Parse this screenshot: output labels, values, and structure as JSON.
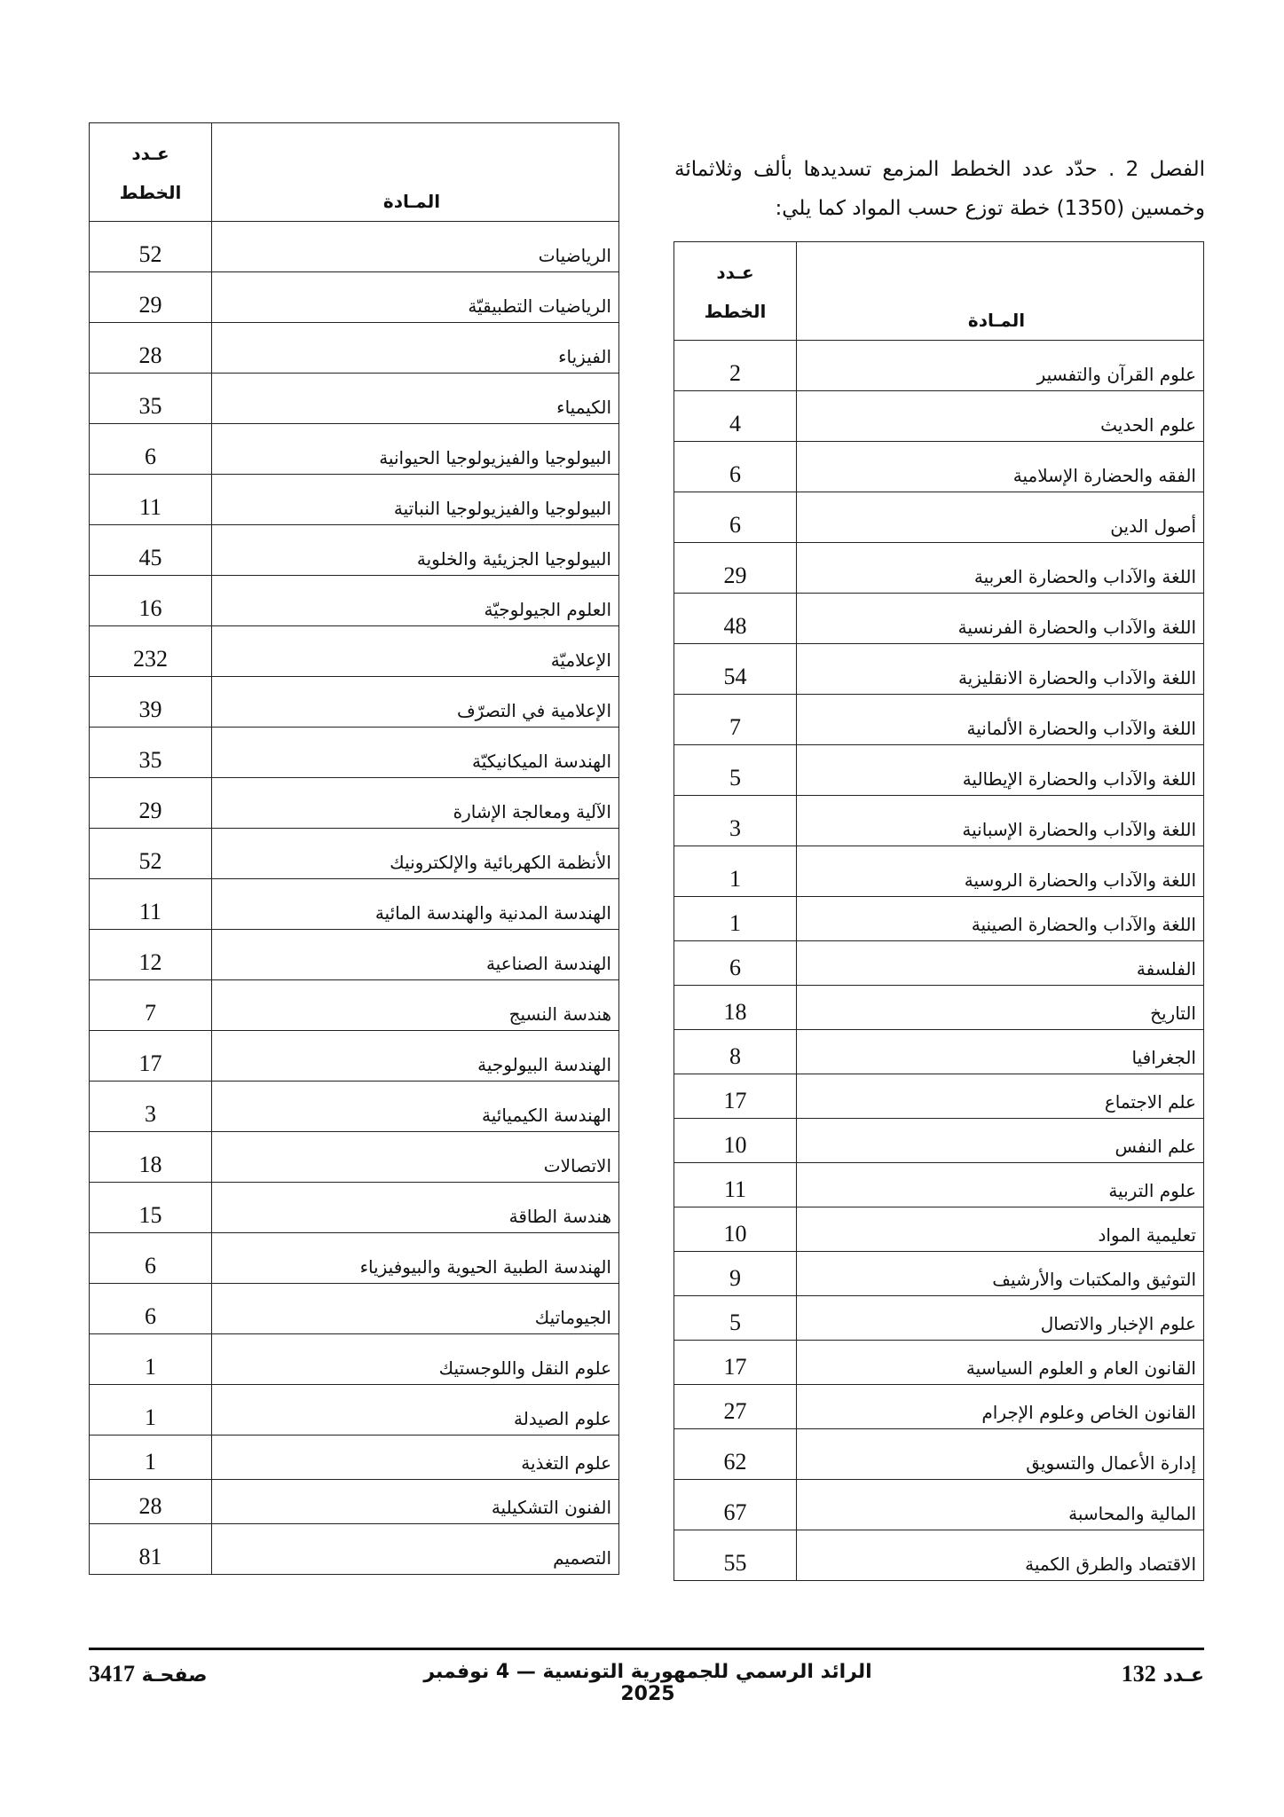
{
  "intro": {
    "line": "الفصل 2 . حدّد عدد الخطط المزمع تسديدها بألف وثلاثمائة وخمسين (1350) خطة توزع حسب المواد كما يلي:"
  },
  "table_headers": {
    "count_top": "عـدد",
    "count_bottom": "الخطط",
    "subject": "المـادة"
  },
  "right_table": [
    {
      "subject": "علوم القرآن والتفسير",
      "count": "2"
    },
    {
      "subject": "علوم الحديث",
      "count": "4"
    },
    {
      "subject": "الفقه والحضارة الإسلامية",
      "count": "6"
    },
    {
      "subject": "أصول الدين",
      "count": "6"
    },
    {
      "subject": "اللغة والآداب والحضارة العربية",
      "count": "29"
    },
    {
      "subject": "اللغة والآداب والحضارة الفرنسية",
      "count": "48"
    },
    {
      "subject": "اللغة والآداب والحضارة الانقليزية",
      "count": "54"
    },
    {
      "subject": "اللغة والآداب والحضارة الألمانية",
      "count": "7"
    },
    {
      "subject": "اللغة والآداب والحضارة الإيطالية",
      "count": "5"
    },
    {
      "subject": "اللغة والآداب والحضارة الإسبانية",
      "count": "3"
    },
    {
      "subject": "اللغة والآداب والحضارة الروسية",
      "count": "1"
    },
    {
      "subject": "اللغة والآداب والحضارة الصينية",
      "count": "1"
    },
    {
      "subject": "الفلسفة",
      "count": "6"
    },
    {
      "subject": "التاريخ",
      "count": "18"
    },
    {
      "subject": "الجغرافيا",
      "count": "8"
    },
    {
      "subject": "علم الاجتماع",
      "count": "17"
    },
    {
      "subject": "علم النفس",
      "count": "10"
    },
    {
      "subject": "علوم التربية",
      "count": "11"
    },
    {
      "subject": "تعليمية المواد",
      "count": "10"
    },
    {
      "subject": "التوثيق والمكتبات والأرشيف",
      "count": "9"
    },
    {
      "subject": "علوم الإخبار والاتصال",
      "count": "5"
    },
    {
      "subject": "القانون العام و العلوم السياسية",
      "count": "17"
    },
    {
      "subject": "القانون الخاص وعلوم الإجرام",
      "count": "27"
    },
    {
      "subject": "إدارة الأعمال والتسويق",
      "count": "62"
    },
    {
      "subject": "المالية والمحاسبة",
      "count": "67"
    },
    {
      "subject": "الاقتصاد والطرق الكمية",
      "count": "55"
    }
  ],
  "left_table": [
    {
      "subject": "الرياضيات",
      "count": "52"
    },
    {
      "subject": "الرياضيات التطبيقيّة",
      "count": "29"
    },
    {
      "subject": "الفيزياء",
      "count": "28"
    },
    {
      "subject": "الكيمياء",
      "count": "35"
    },
    {
      "subject": "البيولوجيا والفيزيولوجيا الحيوانية",
      "count": "6"
    },
    {
      "subject": "البيولوجيا والفيزيولوجيا النباتية",
      "count": "11"
    },
    {
      "subject": "البيولوجيا الجزيئية والخلوية",
      "count": "45"
    },
    {
      "subject": "العلوم الجيولوجيّة",
      "count": "16"
    },
    {
      "subject": "الإعلاميّة",
      "count": "232"
    },
    {
      "subject": "الإعلامية في التصرّف",
      "count": "39"
    },
    {
      "subject": "الهندسة الميكانيكيّة",
      "count": "35"
    },
    {
      "subject": "الآلية ومعالجة الإشارة",
      "count": "29"
    },
    {
      "subject": "الأنظمة الكهربائية والإلكترونيك",
      "count": "52"
    },
    {
      "subject": "الهندسة المدنية والهندسة المائية",
      "count": "11"
    },
    {
      "subject": "الهندسة الصناعية",
      "count": "12"
    },
    {
      "subject": "هندسة النسيج",
      "count": "7"
    },
    {
      "subject": "الهندسة البيولوجية",
      "count": "17"
    },
    {
      "subject": "الهندسة الكيميائية",
      "count": "3"
    },
    {
      "subject": "الاتصالات",
      "count": "18"
    },
    {
      "subject": "هندسة الطاقة",
      "count": "15"
    },
    {
      "subject": "الهندسة الطبية الحيوية والبيوفيزياء",
      "count": "6"
    },
    {
      "subject": "الجيوماتيك",
      "count": "6"
    },
    {
      "subject": "علوم النقل واللوجستيك",
      "count": "1"
    },
    {
      "subject": "علوم الصيدلة",
      "count": "1"
    },
    {
      "subject": "علوم التغذية",
      "count": "1"
    },
    {
      "subject": "الفنون التشكيلية",
      "count": "28"
    },
    {
      "subject": "التصميم",
      "count": "81"
    }
  ],
  "footer": {
    "issue_label": "عـدد",
    "issue_number": "132",
    "journal": "الرائد الرسمي للجمهورية التونسية — 4 نوفمبر 2025",
    "page_label": "صفحـة",
    "page_number": "3417"
  }
}
